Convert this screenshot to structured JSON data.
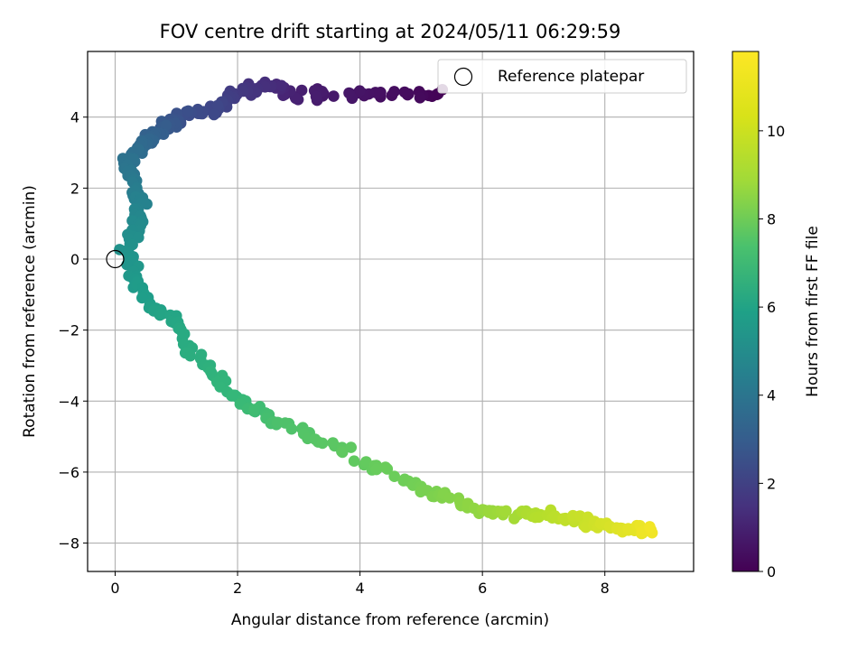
{
  "chart_data": {
    "type": "scatter",
    "title": "FOV centre drift starting at 2024/05/11 06:29:59",
    "xlabel": "Angular distance from reference (arcmin)",
    "ylabel": "Rotation from reference (arcmin)",
    "xlim": [
      -0.45,
      9.45
    ],
    "ylim": [
      -8.8,
      5.85
    ],
    "xticks": [
      0,
      2,
      4,
      6,
      8
    ],
    "yticks": [
      -8,
      -6,
      -4,
      -2,
      0,
      2,
      4
    ],
    "grid": true,
    "colormap": "viridis",
    "colorbar": {
      "label": "Hours from first FF file",
      "range": [
        0,
        11.8
      ],
      "ticks": [
        0,
        2,
        4,
        6,
        8,
        10
      ]
    },
    "legend": {
      "placement": "top-right",
      "entries": [
        {
          "label": "Reference platepar",
          "marker": "open-circle"
        }
      ]
    },
    "reference_point": {
      "x": 0,
      "y": 0
    },
    "anchors": [
      {
        "hours": 0.0,
        "x": 5.3,
        "y": 4.65
      },
      {
        "hours": 0.3,
        "x": 4.9,
        "y": 4.6
      },
      {
        "hours": 0.6,
        "x": 4.0,
        "y": 4.7
      },
      {
        "hours": 1.0,
        "x": 3.0,
        "y": 4.6
      },
      {
        "hours": 1.5,
        "x": 2.5,
        "y": 4.95
      },
      {
        "hours": 2.0,
        "x": 2.0,
        "y": 4.6
      },
      {
        "hours": 2.5,
        "x": 1.6,
        "y": 4.25
      },
      {
        "hours": 3.0,
        "x": 1.0,
        "y": 4.0
      },
      {
        "hours": 3.5,
        "x": 0.7,
        "y": 3.6
      },
      {
        "hours": 4.0,
        "x": 0.45,
        "y": 3.2
      },
      {
        "hours": 4.4,
        "x": 0.2,
        "y": 2.8
      },
      {
        "hours": 4.8,
        "x": 0.3,
        "y": 2.2
      },
      {
        "hours": 5.2,
        "x": 0.4,
        "y": 1.6
      },
      {
        "hours": 5.6,
        "x": 0.35,
        "y": 1.0
      },
      {
        "hours": 6.0,
        "x": 0.2,
        "y": 0.25
      },
      {
        "hours": 6.3,
        "x": 0.35,
        "y": -0.5
      },
      {
        "hours": 6.6,
        "x": 0.5,
        "y": -1.2
      },
      {
        "hours": 7.0,
        "x": 1.0,
        "y": -1.8
      },
      {
        "hours": 7.3,
        "x": 1.25,
        "y": -2.6
      },
      {
        "hours": 7.6,
        "x": 1.6,
        "y": -3.3
      },
      {
        "hours": 8.0,
        "x": 2.2,
        "y": -4.2
      },
      {
        "hours": 8.4,
        "x": 2.7,
        "y": -4.6
      },
      {
        "hours": 8.8,
        "x": 3.7,
        "y": -5.4
      },
      {
        "hours": 9.2,
        "x": 4.8,
        "y": -6.3
      },
      {
        "hours": 9.6,
        "x": 5.5,
        "y": -6.8
      },
      {
        "hours": 10.0,
        "x": 6.2,
        "y": -7.2
      },
      {
        "hours": 10.5,
        "x": 7.0,
        "y": -7.2
      },
      {
        "hours": 11.0,
        "x": 7.9,
        "y": -7.5
      },
      {
        "hours": 11.6,
        "x": 8.8,
        "y": -7.7
      }
    ]
  }
}
